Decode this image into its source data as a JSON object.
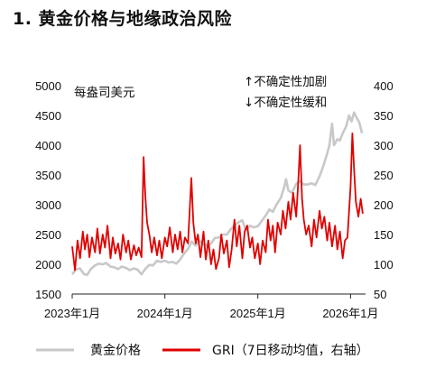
{
  "title": "1. 黄金价格与地缘政治风险",
  "chart_data": {
    "type": "line",
    "left_axis": {
      "unit": "每盎司美元",
      "ticks": [
        "5000",
        "4500",
        "4000",
        "3500",
        "3000",
        "2500",
        "2000",
        "1500"
      ],
      "range": [
        1500,
        5000
      ]
    },
    "right_axis": {
      "ticks": [
        "400",
        "350",
        "300",
        "250",
        "200",
        "150",
        "100",
        "50"
      ],
      "range": [
        50,
        400
      ]
    },
    "x_axis": {
      "ticks": [
        "2023年1月",
        "2024年1月",
        "2025年1月",
        "2026年1月"
      ],
      "range": [
        "2023-01-01",
        "2026-03-01"
      ]
    },
    "annotations": {
      "up": "↑不确定性加剧",
      "down": "↓不确定性缓和"
    },
    "series": [
      {
        "name": "黄金价格",
        "axis": "left",
        "color": "#c8c8c8",
        "points": [
          [
            "2023-01-01",
            1830
          ],
          [
            "2023-01-15",
            1910
          ],
          [
            "2023-02-01",
            1930
          ],
          [
            "2023-02-15",
            1840
          ],
          [
            "2023-03-01",
            1820
          ],
          [
            "2023-03-15",
            1920
          ],
          [
            "2023-04-01",
            1980
          ],
          [
            "2023-04-15",
            2010
          ],
          [
            "2023-05-01",
            2000
          ],
          [
            "2023-05-15",
            2020
          ],
          [
            "2023-06-01",
            1960
          ],
          [
            "2023-06-15",
            1950
          ],
          [
            "2023-07-01",
            1920
          ],
          [
            "2023-07-15",
            1960
          ],
          [
            "2023-08-01",
            1940
          ],
          [
            "2023-08-15",
            1900
          ],
          [
            "2023-09-01",
            1930
          ],
          [
            "2023-09-15",
            1910
          ],
          [
            "2023-10-01",
            1830
          ],
          [
            "2023-10-15",
            1920
          ],
          [
            "2023-11-01",
            1990
          ],
          [
            "2023-11-15",
            1980
          ],
          [
            "2023-12-01",
            2060
          ],
          [
            "2023-12-15",
            2040
          ],
          [
            "2024-01-01",
            2060
          ],
          [
            "2024-01-15",
            2030
          ],
          [
            "2024-02-01",
            2040
          ],
          [
            "2024-02-15",
            2010
          ],
          [
            "2024-03-01",
            2080
          ],
          [
            "2024-03-15",
            2170
          ],
          [
            "2024-04-01",
            2260
          ],
          [
            "2024-04-15",
            2380
          ],
          [
            "2024-05-01",
            2310
          ],
          [
            "2024-05-15",
            2400
          ],
          [
            "2024-06-01",
            2330
          ],
          [
            "2024-06-15",
            2320
          ],
          [
            "2024-07-01",
            2350
          ],
          [
            "2024-07-15",
            2440
          ],
          [
            "2024-08-01",
            2450
          ],
          [
            "2024-08-15",
            2500
          ],
          [
            "2024-09-01",
            2500
          ],
          [
            "2024-09-15",
            2580
          ],
          [
            "2024-10-01",
            2650
          ],
          [
            "2024-10-15",
            2700
          ],
          [
            "2024-11-01",
            2740
          ],
          [
            "2024-11-15",
            2570
          ],
          [
            "2024-12-01",
            2650
          ],
          [
            "2024-12-15",
            2620
          ],
          [
            "2025-01-01",
            2640
          ],
          [
            "2025-01-15",
            2720
          ],
          [
            "2025-02-01",
            2820
          ],
          [
            "2025-02-15",
            2920
          ],
          [
            "2025-03-01",
            2880
          ],
          [
            "2025-03-15",
            3000
          ],
          [
            "2025-04-01",
            3110
          ],
          [
            "2025-04-15",
            3300
          ],
          [
            "2025-04-22",
            3430
          ],
          [
            "2025-05-01",
            3240
          ],
          [
            "2025-05-15",
            3200
          ],
          [
            "2025-06-01",
            3350
          ],
          [
            "2025-06-15",
            3400
          ],
          [
            "2025-07-01",
            3340
          ],
          [
            "2025-07-15",
            3340
          ],
          [
            "2025-08-01",
            3360
          ],
          [
            "2025-08-15",
            3330
          ],
          [
            "2025-09-01",
            3480
          ],
          [
            "2025-09-15",
            3640
          ],
          [
            "2025-10-01",
            3860
          ],
          [
            "2025-10-10",
            4000
          ],
          [
            "2025-10-20",
            4360
          ],
          [
            "2025-10-28",
            4000
          ],
          [
            "2025-11-10",
            4100
          ],
          [
            "2025-11-20",
            4080
          ],
          [
            "2025-12-01",
            4200
          ],
          [
            "2025-12-15",
            4320
          ],
          [
            "2025-12-26",
            4500
          ],
          [
            "2026-01-05",
            4400
          ],
          [
            "2026-01-15",
            4550
          ],
          [
            "2026-01-25",
            4460
          ],
          [
            "2026-02-05",
            4380
          ],
          [
            "2026-02-15",
            4200
          ]
        ]
      },
      {
        "name": "GRI（7日移动均值，右轴）",
        "axis": "right",
        "color": "#e00000",
        "points": [
          [
            "2023-01-01",
            130
          ],
          [
            "2023-01-12",
            90
          ],
          [
            "2023-01-22",
            140
          ],
          [
            "2023-02-01",
            110
          ],
          [
            "2023-02-12",
            155
          ],
          [
            "2023-02-20",
            125
          ],
          [
            "2023-03-01",
            150
          ],
          [
            "2023-03-10",
            112
          ],
          [
            "2023-03-20",
            145
          ],
          [
            "2023-04-01",
            120
          ],
          [
            "2023-04-10",
            160
          ],
          [
            "2023-04-20",
            118
          ],
          [
            "2023-05-01",
            150
          ],
          [
            "2023-05-10",
            128
          ],
          [
            "2023-05-20",
            165
          ],
          [
            "2023-06-01",
            110
          ],
          [
            "2023-06-10",
            145
          ],
          [
            "2023-06-20",
            118
          ],
          [
            "2023-07-01",
            135
          ],
          [
            "2023-07-10",
            108
          ],
          [
            "2023-07-20",
            150
          ],
          [
            "2023-08-01",
            120
          ],
          [
            "2023-08-10",
            140
          ],
          [
            "2023-08-20",
            108
          ],
          [
            "2023-09-01",
            132
          ],
          [
            "2023-09-10",
            115
          ],
          [
            "2023-09-20",
            128
          ],
          [
            "2023-10-01",
            112
          ],
          [
            "2023-10-09",
            280
          ],
          [
            "2023-10-16",
            215
          ],
          [
            "2023-10-23",
            170
          ],
          [
            "2023-11-01",
            150
          ],
          [
            "2023-11-10",
            120
          ],
          [
            "2023-11-20",
            145
          ],
          [
            "2023-12-01",
            115
          ],
          [
            "2023-12-10",
            140
          ],
          [
            "2023-12-20",
            110
          ],
          [
            "2024-01-01",
            145
          ],
          [
            "2024-01-10",
            130
          ],
          [
            "2024-01-20",
            162
          ],
          [
            "2024-02-01",
            120
          ],
          [
            "2024-02-10",
            150
          ],
          [
            "2024-02-20",
            125
          ],
          [
            "2024-03-01",
            155
          ],
          [
            "2024-03-10",
            120
          ],
          [
            "2024-03-20",
            145
          ],
          [
            "2024-04-01",
            135
          ],
          [
            "2024-04-14",
            245
          ],
          [
            "2024-04-22",
            170
          ],
          [
            "2024-05-01",
            135
          ],
          [
            "2024-05-10",
            150
          ],
          [
            "2024-05-20",
            112
          ],
          [
            "2024-06-01",
            155
          ],
          [
            "2024-06-10",
            108
          ],
          [
            "2024-06-20",
            140
          ],
          [
            "2024-07-01",
            100
          ],
          [
            "2024-07-10",
            125
          ],
          [
            "2024-07-20",
            92
          ],
          [
            "2024-08-01",
            110
          ],
          [
            "2024-08-10",
            150
          ],
          [
            "2024-08-20",
            118
          ],
          [
            "2024-09-01",
            140
          ],
          [
            "2024-09-10",
            95
          ],
          [
            "2024-09-20",
            125
          ],
          [
            "2024-10-01",
            175
          ],
          [
            "2024-10-10",
            130
          ],
          [
            "2024-10-20",
            165
          ],
          [
            "2024-11-01",
            110
          ],
          [
            "2024-11-10",
            155
          ],
          [
            "2024-11-20",
            165
          ],
          [
            "2024-12-01",
            128
          ],
          [
            "2024-12-10",
            145
          ],
          [
            "2024-12-20",
            110
          ],
          [
            "2025-01-01",
            135
          ],
          [
            "2025-01-10",
            100
          ],
          [
            "2025-01-20",
            140
          ],
          [
            "2025-02-01",
            120
          ],
          [
            "2025-02-10",
            175
          ],
          [
            "2025-02-20",
            140
          ],
          [
            "2025-03-01",
            165
          ],
          [
            "2025-03-10",
            120
          ],
          [
            "2025-03-20",
            170
          ],
          [
            "2025-04-01",
            150
          ],
          [
            "2025-04-10",
            190
          ],
          [
            "2025-04-20",
            160
          ],
          [
            "2025-05-01",
            205
          ],
          [
            "2025-05-10",
            175
          ],
          [
            "2025-05-20",
            220
          ],
          [
            "2025-06-01",
            180
          ],
          [
            "2025-06-10",
            245
          ],
          [
            "2025-06-16",
            300
          ],
          [
            "2025-06-24",
            210
          ],
          [
            "2025-07-01",
            175
          ],
          [
            "2025-07-10",
            150
          ],
          [
            "2025-07-20",
            165
          ],
          [
            "2025-08-01",
            130
          ],
          [
            "2025-08-10",
            175
          ],
          [
            "2025-08-20",
            145
          ],
          [
            "2025-09-01",
            190
          ],
          [
            "2025-09-10",
            160
          ],
          [
            "2025-09-20",
            180
          ],
          [
            "2025-10-01",
            140
          ],
          [
            "2025-10-10",
            170
          ],
          [
            "2025-10-20",
            130
          ],
          [
            "2025-11-01",
            165
          ],
          [
            "2025-11-10",
            125
          ],
          [
            "2025-11-20",
            155
          ],
          [
            "2025-12-01",
            110
          ],
          [
            "2025-12-10",
            140
          ],
          [
            "2025-12-20",
            145
          ],
          [
            "2026-01-01",
            230
          ],
          [
            "2026-01-08",
            320
          ],
          [
            "2026-01-15",
            260
          ],
          [
            "2026-01-22",
            205
          ],
          [
            "2026-02-01",
            180
          ],
          [
            "2026-02-10",
            210
          ],
          [
            "2026-02-18",
            185
          ]
        ]
      }
    ],
    "grid": false,
    "legend_position": "bottom"
  }
}
